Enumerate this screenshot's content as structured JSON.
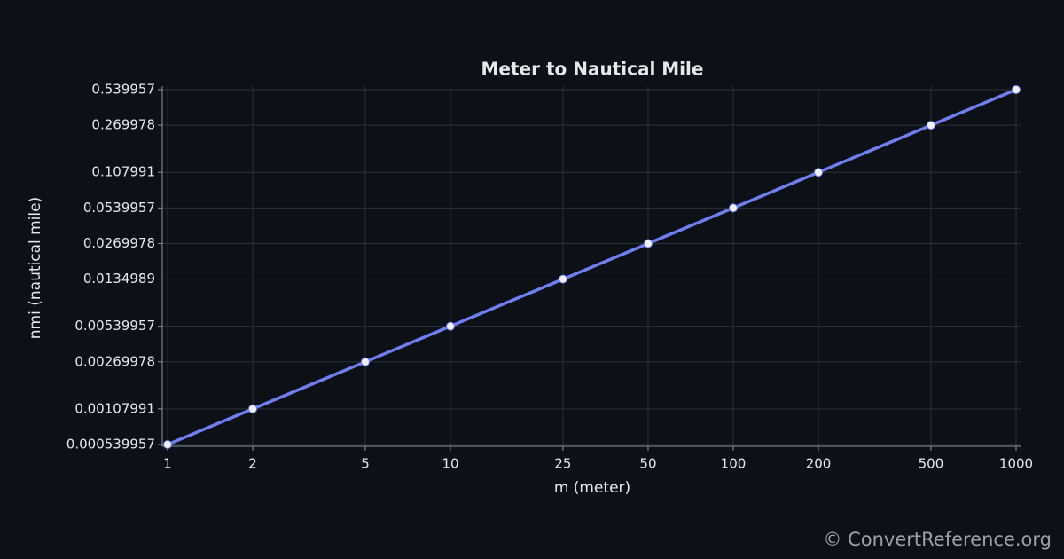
{
  "chart_data": {
    "type": "line",
    "title": "Meter to Nautical Mile",
    "x_label": "m (meter)",
    "y_label": "nmi (nautical mile)",
    "x": [
      1,
      2,
      5,
      10,
      25,
      50,
      100,
      200,
      500,
      1000
    ],
    "series": [
      {
        "name": "nmi",
        "color": "#6f7ff0",
        "values": [
          0.000539957,
          0.00107991,
          0.00269978,
          0.00539957,
          0.0134989,
          0.0269978,
          0.0539957,
          0.107991,
          0.269978,
          0.539957
        ]
      }
    ],
    "xlim": [
      1,
      1000
    ],
    "ylim": [
      0.000539957,
      0.539957
    ],
    "xticks": [
      1,
      2,
      5,
      10,
      25,
      50,
      100,
      200,
      500,
      1000
    ],
    "yticks": [
      0.000539957,
      0.00107991,
      0.00269978,
      0.00539957,
      0.0134989,
      0.0269978,
      0.0539957,
      0.107991,
      0.269978,
      0.539957
    ],
    "xscale": "log",
    "yscale": "log",
    "grid": true,
    "watermark": "© ConvertReference.org"
  }
}
